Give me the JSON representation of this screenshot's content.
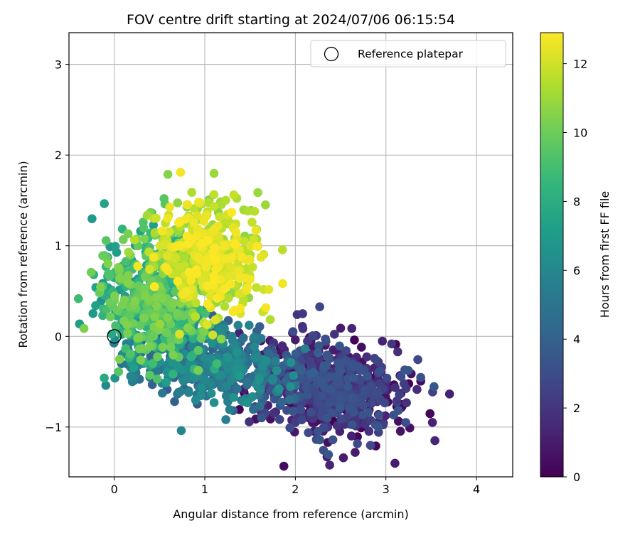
{
  "chart_data": {
    "type": "scatter",
    "title": "FOV centre drift starting at 2024/07/06 06:15:54",
    "xlabel": "Angular distance from reference (arcmin)",
    "ylabel": "Rotation from reference (arcmin)",
    "xlim": [
      -0.5,
      4.4
    ],
    "ylim": [
      -1.55,
      3.35
    ],
    "xticks": [
      0,
      1,
      2,
      3,
      4
    ],
    "yticks": [
      -1,
      0,
      1,
      2,
      3
    ],
    "xtick_labels": [
      "0",
      "1",
      "2",
      "3",
      "4"
    ],
    "ytick_labels": [
      "−1",
      "0",
      "1",
      "2",
      "3"
    ],
    "grid": true,
    "colormap": "viridis",
    "colorbar": {
      "label": "Hours from first FF file",
      "range": [
        0,
        12.9
      ],
      "ticks": [
        0,
        2,
        4,
        6,
        8,
        10,
        12
      ],
      "tick_labels": [
        "0",
        "2",
        "4",
        "6",
        "8",
        "10",
        "12"
      ]
    },
    "legend": {
      "placement": "top-right",
      "entries": [
        {
          "label": "Reference platepar",
          "marker": "hollow-circle"
        }
      ]
    },
    "reference_point": {
      "x": 0,
      "y": 0
    },
    "clusters": [
      {
        "hours": [
          0,
          3.5
        ],
        "center": [
          2.35,
          -0.55
        ],
        "spread": [
          0.42,
          0.25
        ],
        "count": 650
      },
      {
        "hours": [
          3.5,
          6.5
        ],
        "center": [
          1.05,
          -0.3
        ],
        "spread": [
          0.45,
          0.2
        ],
        "count": 450
      },
      {
        "hours": [
          6.5,
          10.5
        ],
        "center": [
          0.45,
          0.4
        ],
        "spread": [
          0.3,
          0.35
        ],
        "count": 550
      },
      {
        "hours": [
          10.5,
          12.9
        ],
        "center": [
          1.05,
          0.85
        ],
        "spread": [
          0.3,
          0.3
        ],
        "count": 500
      }
    ],
    "series": [
      {
        "x": [
          0.55,
          0.56,
          0.32,
          0.71,
          0.37,
          0.2,
          0.12,
          0.2,
          0.74,
          1.67,
          1.55,
          1.32,
          1.02,
          2.02,
          2.08,
          2.5,
          2.73,
          2.9,
          2.98,
          3.1,
          3.17,
          2.66,
          2.53,
          2.35,
          2.49,
          2.62,
          2.61,
          2.0,
          0.2,
          0.09,
          0.12,
          1.82,
          0.82,
          0.9
        ],
        "y": [
          1.52,
          1.46,
          1.26,
          1.19,
          1.08,
          0.74,
          0.43,
          -0.05,
          -1.04,
          1.45,
          1.38,
          1.56,
          1.34,
          0.24,
          0.25,
          0.09,
          -0.12,
          -0.42,
          -0.53,
          -1.4,
          -0.75,
          -1.28,
          -1.34,
          -1.33,
          -1.05,
          -1.1,
          -0.97,
          -0.95,
          -0.5,
          -0.2,
          0.44,
          -0.58,
          -0.6,
          -0.7
        ],
        "hours": [
          9.5,
          9.5,
          9.3,
          9.5,
          8.5,
          9.0,
          7.0,
          5.5,
          6.0,
          11.0,
          11.5,
          11.8,
          12.5,
          2.0,
          2.1,
          1.0,
          0.5,
          0.3,
          0.2,
          1.0,
          0.5,
          1.0,
          1.0,
          1.0,
          1.2,
          1.2,
          1.0,
          2.2,
          5.5,
          5.5,
          6.5,
          6.5,
          5.0,
          5.5
        ]
      }
    ]
  }
}
